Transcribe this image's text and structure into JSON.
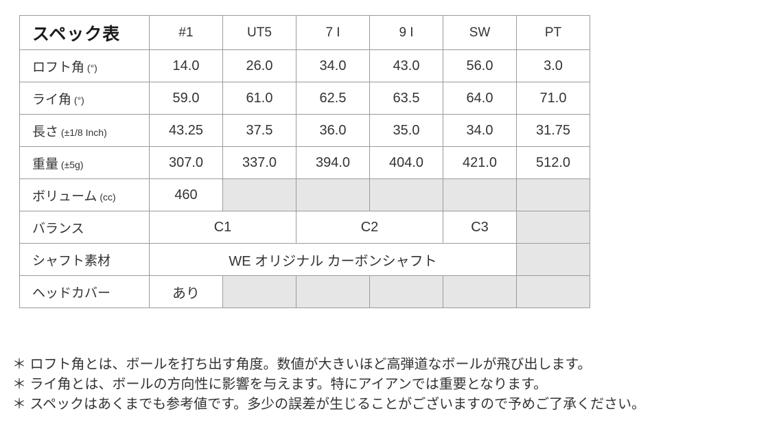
{
  "table": {
    "title": "スペック表",
    "columns": [
      "#1",
      "UT5",
      "7 I",
      "9 I",
      "SW",
      "PT"
    ],
    "rows": [
      {
        "label": "ロフト角",
        "unit": "(°)",
        "cells": [
          {
            "t": "14.0"
          },
          {
            "t": "26.0"
          },
          {
            "t": "34.0"
          },
          {
            "t": "43.0"
          },
          {
            "t": "56.0"
          },
          {
            "t": "3.0"
          }
        ]
      },
      {
        "label": "ライ角",
        "unit": "(°)",
        "cells": [
          {
            "t": "59.0"
          },
          {
            "t": "61.0"
          },
          {
            "t": "62.5"
          },
          {
            "t": "63.5"
          },
          {
            "t": "64.0"
          },
          {
            "t": "71.0"
          }
        ]
      },
      {
        "label": "長さ",
        "unit": "(±1/8 Inch)",
        "cells": [
          {
            "t": "43.25"
          },
          {
            "t": "37.5"
          },
          {
            "t": "36.0"
          },
          {
            "t": "35.0"
          },
          {
            "t": "34.0"
          },
          {
            "t": "31.75"
          }
        ]
      },
      {
        "label": "重量",
        "unit": "(±5g)",
        "cells": [
          {
            "t": "307.0"
          },
          {
            "t": "337.0"
          },
          {
            "t": "394.0"
          },
          {
            "t": "404.0"
          },
          {
            "t": "421.0"
          },
          {
            "t": "512.0"
          }
        ]
      },
      {
        "label": "ボリューム",
        "unit": "(cc)",
        "cells": [
          {
            "t": "460"
          },
          {
            "t": "",
            "gray": true
          },
          {
            "t": "",
            "gray": true
          },
          {
            "t": "",
            "gray": true
          },
          {
            "t": "",
            "gray": true
          },
          {
            "t": "",
            "gray": true
          }
        ]
      },
      {
        "label": "バランス",
        "unit": "",
        "cells": [
          {
            "t": "C1",
            "span": 2
          },
          {
            "t": "C2",
            "span": 2
          },
          {
            "t": "C3"
          },
          {
            "t": "",
            "gray": true
          }
        ]
      },
      {
        "label": "シャフト素材",
        "unit": "",
        "cells": [
          {
            "t": "WE オリジナル カーボンシャフト",
            "span": 5
          },
          {
            "t": "",
            "gray": true
          }
        ]
      },
      {
        "label": "ヘッドカバー",
        "unit": "",
        "cells": [
          {
            "t": "あり"
          },
          {
            "t": "",
            "gray": true
          },
          {
            "t": "",
            "gray": true
          },
          {
            "t": "",
            "gray": true
          },
          {
            "t": "",
            "gray": true
          },
          {
            "t": "",
            "gray": true
          }
        ]
      }
    ]
  },
  "notes": [
    "＊ ロフト角とは、ボールを打ち出す角度。数値が大きいほど高弾道なボールが飛び出します。",
    "＊ ライ角とは、ボールの方向性に影響を与えます。特にアイアンでは重要となります。",
    "＊ スペックはあくまでも参考値です。多少の誤差が生じることがございますので予めご了承ください。"
  ],
  "colors": {
    "gray_cell": "#e6e6e6",
    "border": "#9a9a9a",
    "text": "#333333"
  }
}
